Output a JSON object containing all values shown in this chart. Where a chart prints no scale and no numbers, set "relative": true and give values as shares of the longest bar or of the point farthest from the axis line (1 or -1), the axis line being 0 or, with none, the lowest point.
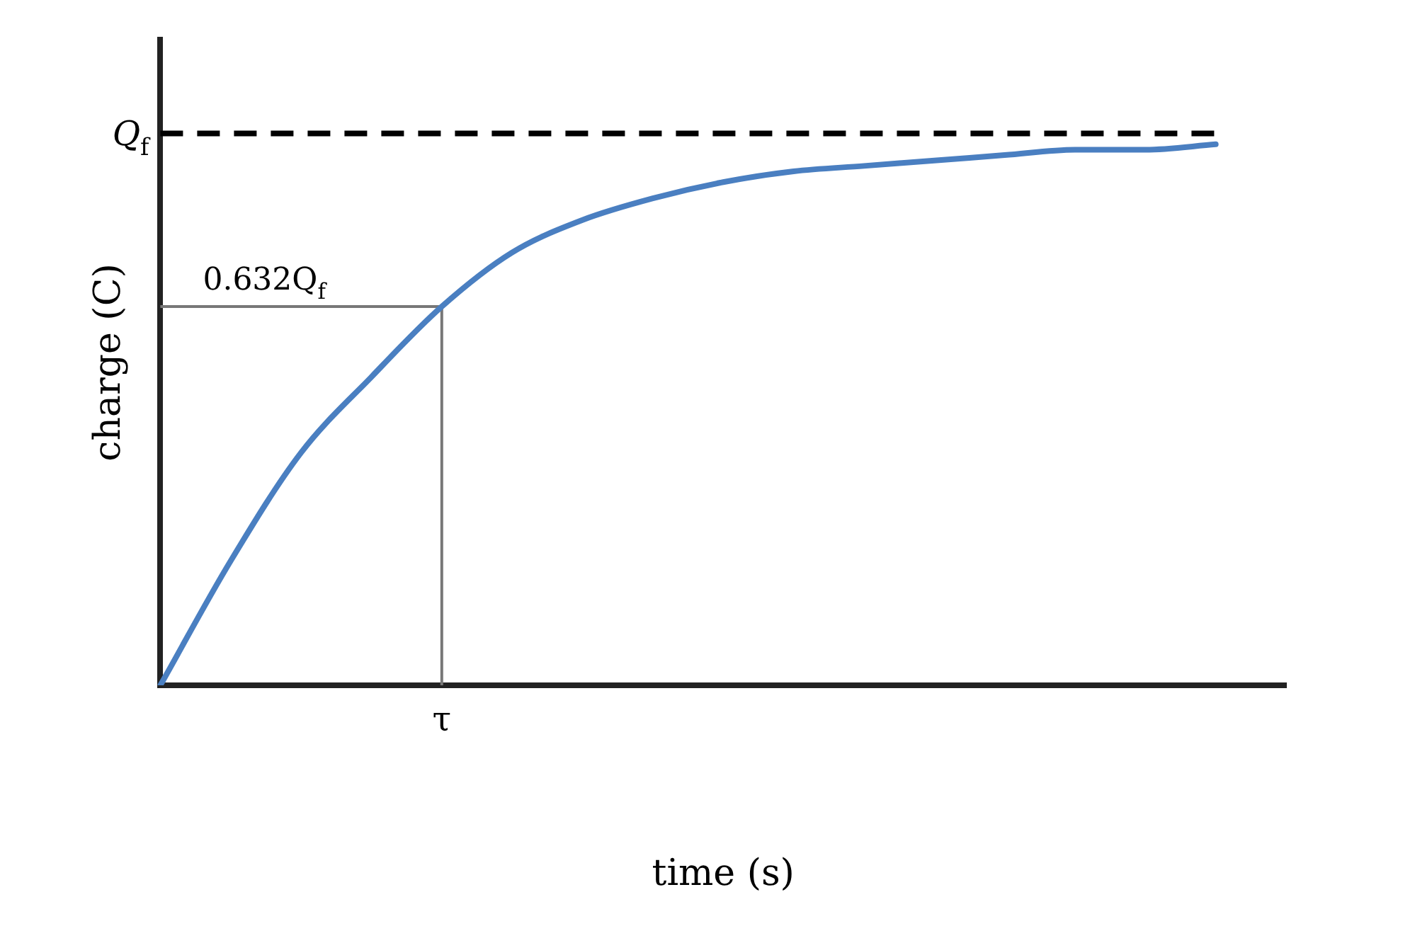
{
  "chart_data": {
    "type": "line",
    "relative": true,
    "xlabel": "time (s)",
    "ylabel": "charge (C)",
    "categories": [
      null,
      null,
      null,
      null,
      null,
      null,
      null,
      null,
      null,
      null,
      null,
      null,
      null,
      null,
      null,
      null,
      null
    ],
    "series": [
      {
        "color": "#4a7fc1",
        "values": [
          0,
          0.23,
          0.43,
          0.57,
          0.7,
          0.8,
          0.86,
          0.9,
          0.93,
          0.95,
          0.96,
          0.97,
          0.98,
          0.99,
          0.99,
          1,
          null
        ]
      }
    ],
    "ref_lines": [
      {
        "axis": "y",
        "value": 1.02,
        "label": "Q$_{f}$",
        "color": "#000000",
        "line_style": "dashed"
      },
      {
        "axis": "y",
        "value": 0.7,
        "label": "0.632Q$_{f}$",
        "color": "#777777",
        "line_style": "solid"
      }
    ],
    "annotations": [
      "τ"
    ],
    "grid": false,
    "legend": false,
    "marker": "none",
    "line_style": "solid"
  }
}
